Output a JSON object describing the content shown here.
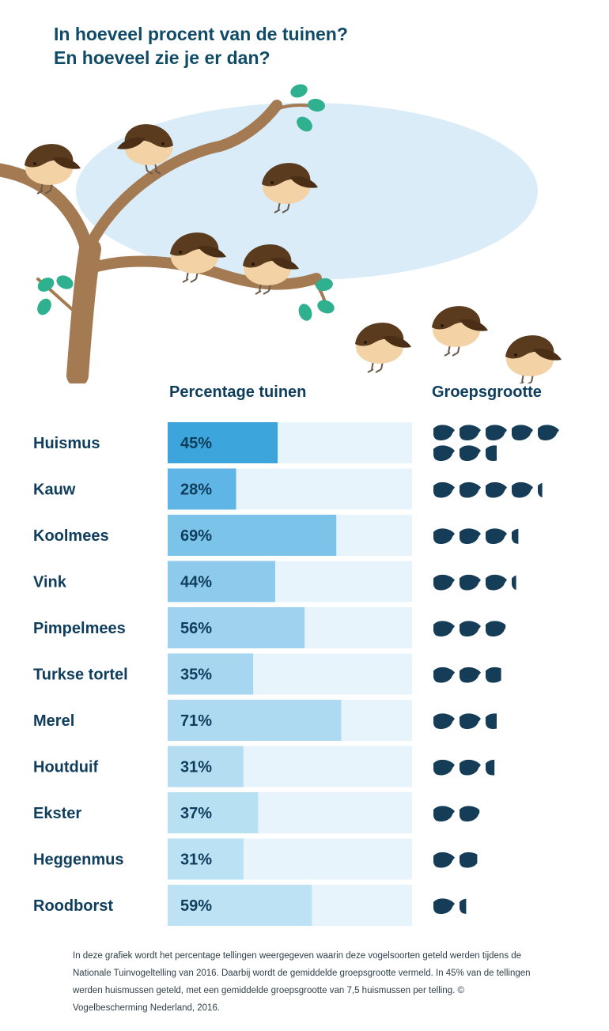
{
  "title_lines": [
    "In hoeveel procent van de tuinen?",
    "En hoeveel zie je er dan?"
  ],
  "columns": {
    "percentage": "Percentage tuinen",
    "group": "Groepsgrootte"
  },
  "chart_data": {
    "type": "bar",
    "orientation": "horizontal",
    "title": "In hoeveel procent van de tuinen? En hoeveel zie je er dan?",
    "xlim": [
      0,
      100
    ],
    "value_unit": "%",
    "categories": [
      "Huismus",
      "Kauw",
      "Koolmees",
      "Vink",
      "Pimpelmees",
      "Turkse tortel",
      "Merel",
      "Houtduif",
      "Ekster",
      "Heggenmus",
      "Roodborst"
    ],
    "series": [
      {
        "name": "Percentage tuinen",
        "values": [
          45,
          28,
          69,
          44,
          56,
          35,
          71,
          31,
          37,
          31,
          59
        ]
      },
      {
        "name": "Groepsgrootte",
        "values": [
          7.5,
          4.2,
          3.3,
          3.2,
          2.9,
          2.7,
          2.5,
          2.4,
          1.9,
          1.8,
          1.3
        ]
      }
    ],
    "value_labels": [
      "45%",
      "28%",
      "69%",
      "44%",
      "56%",
      "35%",
      "71%",
      "31%",
      "37%",
      "31%",
      "59%"
    ],
    "bar_colors": [
      "#3ca5dc",
      "#5fb5e5",
      "#7cc3ea",
      "#8dcaec",
      "#9fd2ef",
      "#a6d6f0",
      "#addaf1",
      "#b4ddf2",
      "#b8e0f3",
      "#bbe1f4",
      "#bde2f4"
    ],
    "track_color": "#e8f4fb",
    "icon_color": "#163d58"
  },
  "icons": {
    "bird": "sparrow-icon",
    "leaf": "leaf-icon",
    "group": "bird-silhouette-icon"
  },
  "colors": {
    "sky": "#d9ecf8",
    "branch": "#a47a52",
    "leaf": "#2fb08f",
    "bird_body": "#f3d3a6",
    "bird_head": "#5a3b1e",
    "title": "#0f4a66"
  },
  "footnote": "In deze grafiek wordt het percentage tellingen weergegeven waarin deze vogelsoorten geteld werden tijdens de Nationale Tuinvogeltelling van 2016. Daarbij wordt de gemiddelde groepsgrootte vermeld. In 45% van de tellingen werden huismussen geteld, met een gemiddelde groepsgrootte van 7,5 huismussen per telling. © Vogelbescherming Nederland, 2016."
}
